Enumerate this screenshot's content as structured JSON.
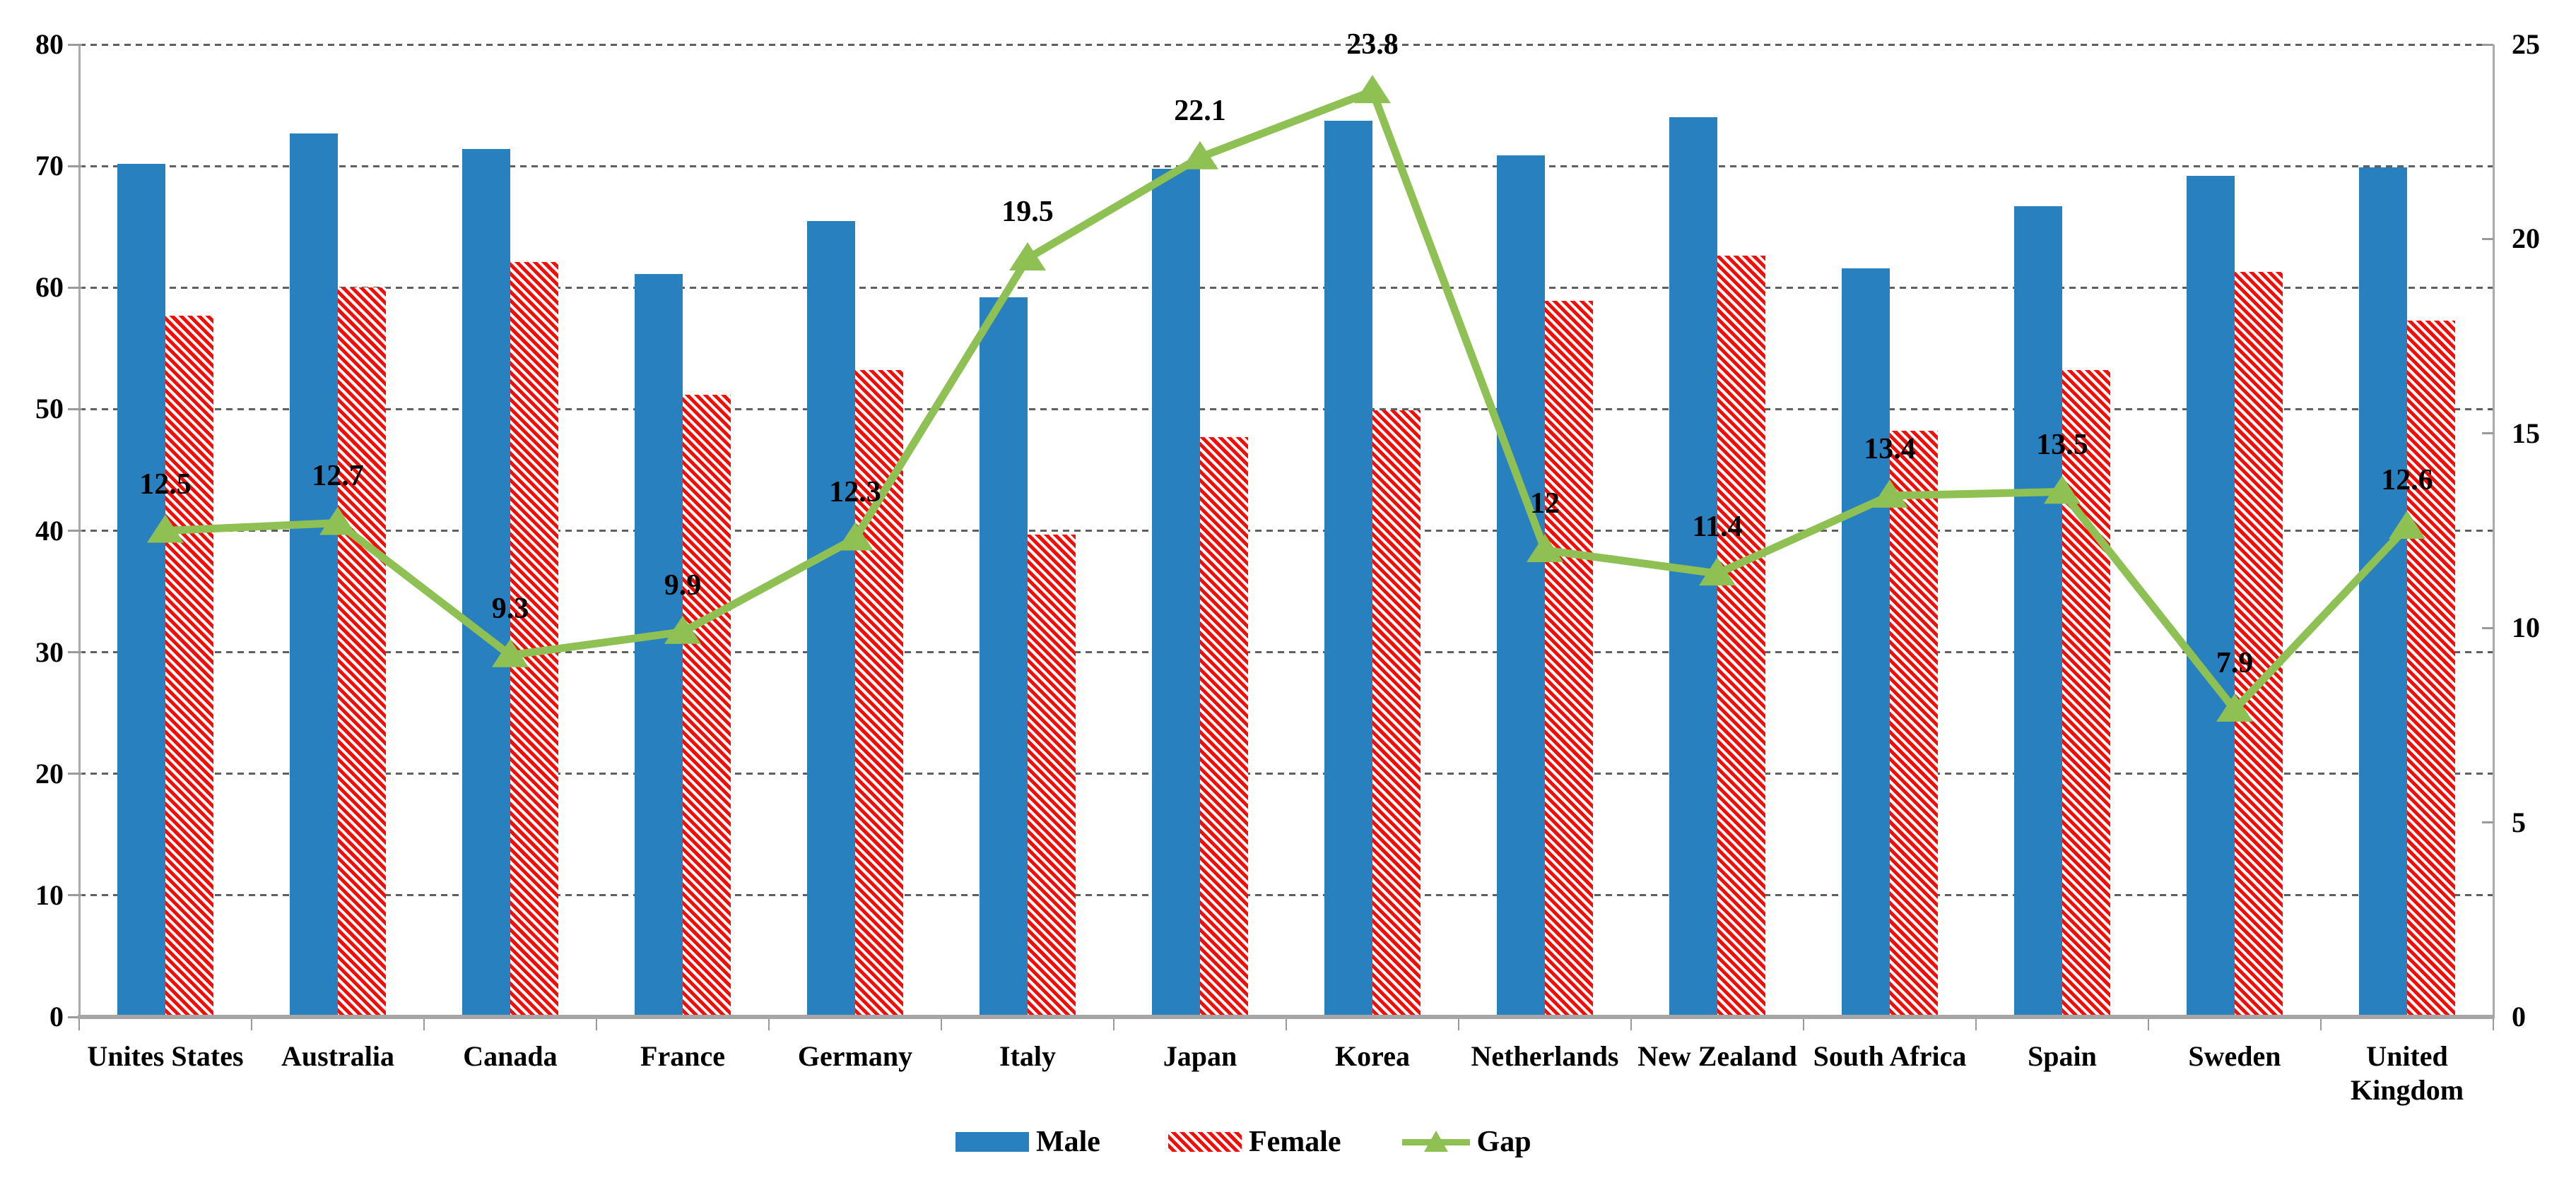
{
  "page": {
    "background": "#ffffff"
  },
  "chart_data": {
    "type": "combo-bar-line",
    "title": "",
    "categories": [
      "Unites States",
      "Australia",
      "Canada",
      "France",
      "Germany",
      "Italy",
      "Japan",
      "Korea",
      "Netherlands",
      "New Zealand",
      "South Africa",
      "Spain",
      "Sweden",
      "United\nKingdom"
    ],
    "series": [
      {
        "name": "Male",
        "type": "bar",
        "axis": "left",
        "values": [
          70.2,
          72.7,
          71.4,
          61.1,
          65.5,
          59.2,
          69.8,
          73.7,
          70.9,
          74.0,
          61.6,
          66.7,
          69.2,
          69.9
        ]
      },
      {
        "name": "Female",
        "type": "bar",
        "axis": "left",
        "values": [
          57.7,
          60.0,
          62.1,
          51.2,
          53.2,
          39.7,
          47.7,
          49.9,
          58.9,
          62.6,
          48.2,
          53.2,
          61.3,
          57.3
        ]
      },
      {
        "name": "Gap",
        "type": "line",
        "axis": "right",
        "values": [
          12.5,
          12.7,
          9.3,
          9.9,
          12.3,
          19.5,
          22.1,
          23.8,
          12.0,
          11.4,
          13.4,
          13.5,
          7.9,
          12.6
        ],
        "labels": [
          "12.5",
          "12.7",
          "9.3",
          "9.9",
          "12.3",
          "19.5",
          "22.1",
          "23.8",
          "12",
          "11.4",
          "13.4",
          "13.5",
          "7.9",
          "12.6"
        ]
      }
    ],
    "left_axis": {
      "min": 0,
      "max": 80,
      "step": 10,
      "tick_labels": [
        "0",
        "10",
        "20",
        "30",
        "40",
        "50",
        "60",
        "70",
        "80"
      ]
    },
    "right_axis": {
      "min": 0,
      "max": 25,
      "step": 5,
      "tick_labels": [
        "0",
        "5",
        "10",
        "15",
        "20",
        "25"
      ]
    },
    "legend": {
      "position": "bottom",
      "items": [
        "Male",
        "Female",
        "Gap"
      ]
    },
    "grid": {
      "horizontal": "dashed"
    }
  },
  "colors": {
    "male_bar": "#2980be",
    "female_hatch": "#f90b05",
    "gap_line": "#8ec054",
    "gridline": "#5f5f5f",
    "axis_line": "#ababab",
    "baseline": "#a6a6a6",
    "text": "#000000"
  }
}
